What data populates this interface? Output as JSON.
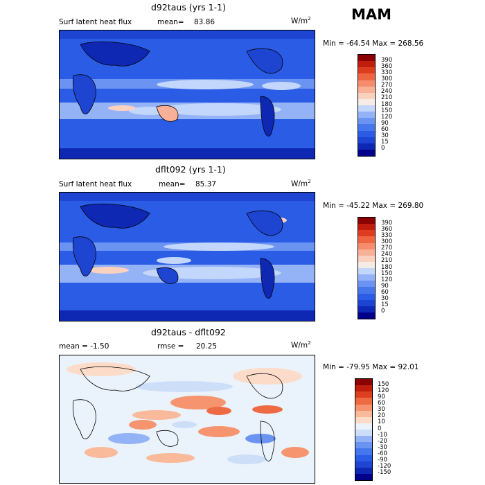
{
  "season": "MAM",
  "units_base": "W/m",
  "units_exp": "2",
  "panels": [
    {
      "title": "d92taus (yrs 1-1)",
      "left_text": "Surf latent heat flux",
      "stat_label": "mean=",
      "stat_value": "83.86",
      "minmax": "Min = -64.54  Max = 268.56"
    },
    {
      "title": "dflt092 (yrs 1-1)",
      "left_text": "Surf latent heat flux",
      "stat_label": "mean=",
      "stat_value": "85.37",
      "minmax": "Min = -45.22  Max = 269.80"
    },
    {
      "title": "d92taus - dflt092",
      "left_text": "mean =   -1.50",
      "stat_label": "rmse =",
      "stat_value": "20.25",
      "minmax": "Min = -79.95  Max =   92.01"
    }
  ],
  "chart_data": [
    {
      "type": "heatmap",
      "title": "d92taus (yrs 1-1)",
      "variable": "Surf latent heat flux",
      "mean": 83.86,
      "min": -64.54,
      "max": 268.56,
      "levels": [
        0,
        15,
        30,
        60,
        90,
        120,
        150,
        180,
        210,
        240,
        270,
        300,
        330,
        360,
        390
      ],
      "colors": [
        "#00008b",
        "#0f28b4",
        "#1e45d2",
        "#2a5ce6",
        "#4676ec",
        "#6a93f2",
        "#94b3f7",
        "#c3d6fb",
        "#f5ece6",
        "#fad1bf",
        "#f8b196",
        "#f58c6b",
        "#ee6641",
        "#dd3d1f",
        "#c01d0c",
        "#8b0000"
      ]
    },
    {
      "type": "heatmap",
      "title": "dflt092 (yrs 1-1)",
      "variable": "Surf latent heat flux",
      "mean": 85.37,
      "min": -45.22,
      "max": 269.8,
      "levels": [
        0,
        15,
        30,
        60,
        90,
        120,
        150,
        180,
        210,
        240,
        270,
        300,
        330,
        360,
        390
      ],
      "colors": [
        "#00008b",
        "#0f28b4",
        "#1e45d2",
        "#2a5ce6",
        "#4676ec",
        "#6a93f2",
        "#94b3f7",
        "#c3d6fb",
        "#f5ece6",
        "#fad1bf",
        "#f8b196",
        "#f58c6b",
        "#ee6641",
        "#dd3d1f",
        "#c01d0c",
        "#8b0000"
      ]
    },
    {
      "type": "heatmap",
      "title": "d92taus - dflt092",
      "mean": -1.5,
      "rmse": 20.25,
      "min": -79.95,
      "max": 92.01,
      "levels": [
        -150,
        -120,
        -90,
        -60,
        -30,
        -20,
        -10,
        0,
        10,
        20,
        30,
        60,
        90,
        120,
        150
      ],
      "colors": [
        "#00008b",
        "#0f28b4",
        "#1e45d2",
        "#2a5ce6",
        "#4676ec",
        "#6a93f2",
        "#94b3f7",
        "#cddff8",
        "#eaf2fb",
        "#fcdcc9",
        "#f9b99b",
        "#f6946f",
        "#ee6a43",
        "#dd4020",
        "#c01d0c",
        "#8b0000"
      ]
    }
  ]
}
